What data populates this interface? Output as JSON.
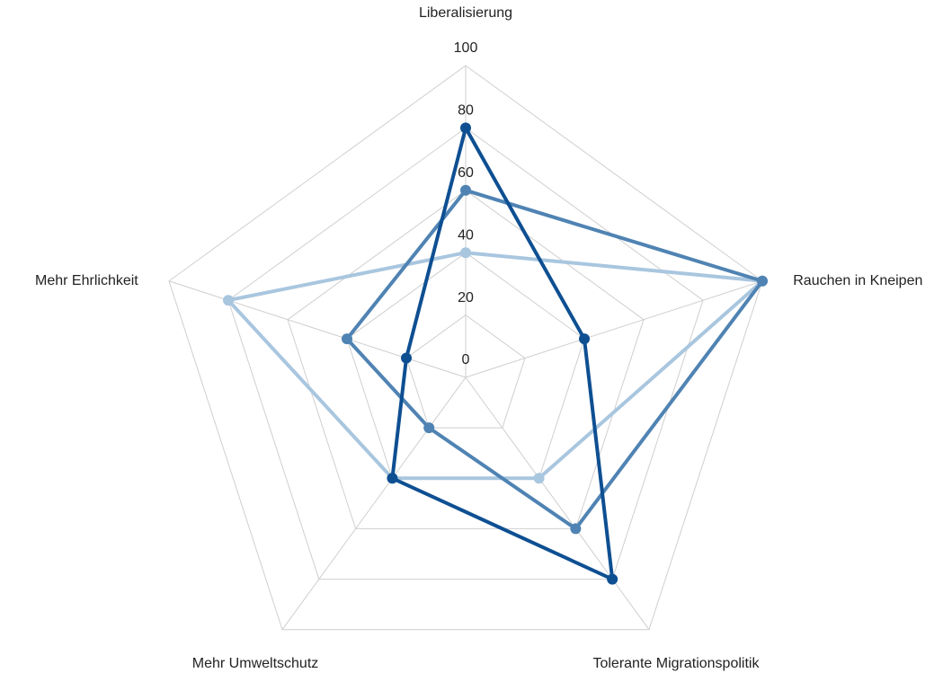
{
  "chart_data": {
    "type": "radar",
    "categories": [
      "Liberalisierung",
      "Rauchen in Kneipen",
      "Tolerante Migrationspolitik",
      "Mehr Umweltschutz",
      "Mehr Ehrlichkeit"
    ],
    "series": [
      {
        "color": "#a9c6df",
        "values": [
          40,
          100,
          40,
          40,
          80
        ]
      },
      {
        "color": "#4f83b3",
        "values": [
          60,
          100,
          60,
          20,
          40
        ]
      },
      {
        "color": "#0e4f92",
        "values": [
          80,
          40,
          80,
          40,
          20
        ]
      }
    ],
    "ylim": [
      0,
      100
    ],
    "yticks": [
      0,
      20,
      40,
      60,
      80,
      100
    ],
    "grid": true
  }
}
